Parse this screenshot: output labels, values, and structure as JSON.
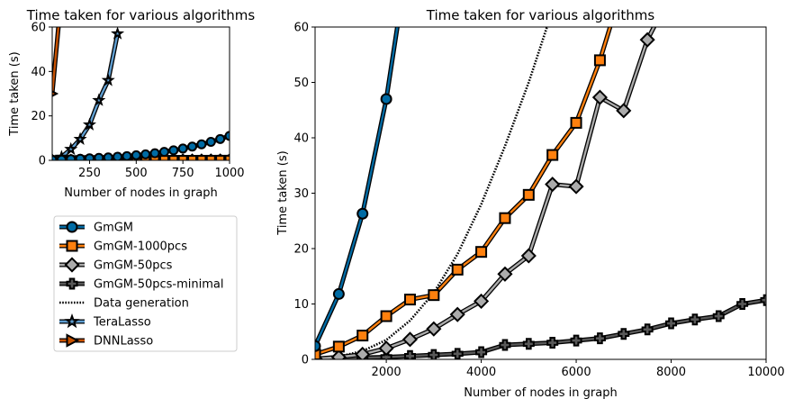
{
  "colors": {
    "GmGM": "#006BA4",
    "GmGM-1000pcs": "#FF800E",
    "GmGM-50pcs": "#ABABAB",
    "GmGM-50pcs-minimal": "#595959",
    "Data generation": "#000000",
    "TeraLasso": "#5F9ED1",
    "DNNLasso": "#C85200"
  },
  "chart_data": [
    {
      "type": "line",
      "title": "Time taken for various algorithms",
      "xlabel": "Number of nodes in graph",
      "ylabel": "Time taken (s)",
      "xlim": [
        50,
        1000
      ],
      "ylim": [
        0,
        60
      ],
      "xticks": [
        250,
        500,
        750,
        1000
      ],
      "yticks": [
        0,
        20,
        40,
        60
      ],
      "xtick_labels": [
        "250",
        "500",
        "750",
        "1000"
      ],
      "ytick_labels": [
        "0",
        "20",
        "40",
        "60"
      ],
      "series": [
        {
          "name": "GmGM",
          "marker": "circle",
          "x": [
            50,
            100,
            150,
            200,
            250,
            300,
            350,
            400,
            450,
            500,
            550,
            600,
            650,
            700,
            750,
            800,
            850,
            900,
            950,
            1000
          ],
          "y": [
            0.2,
            0.3,
            0.5,
            0.7,
            0.9,
            1.1,
            1.3,
            1.6,
            1.9,
            2.3,
            2.7,
            3.2,
            3.8,
            4.5,
            5.3,
            6.2,
            7.2,
            8.3,
            9.6,
            11.0
          ]
        },
        {
          "name": "GmGM-1000pcs",
          "marker": "square",
          "x": [
            50,
            100,
            150,
            200,
            250,
            300,
            350,
            400,
            450,
            500,
            550,
            600,
            650,
            700,
            750,
            800,
            850,
            900,
            950,
            1000
          ],
          "y": [
            0.05,
            0.06,
            0.07,
            0.08,
            0.09,
            0.1,
            0.11,
            0.12,
            0.13,
            0.14,
            0.15,
            0.16,
            0.17,
            0.18,
            0.19,
            0.2,
            0.21,
            0.22,
            0.23,
            0.24
          ]
        },
        {
          "name": "GmGM-50pcs",
          "marker": "diamond",
          "x": [
            50,
            100,
            150,
            200,
            250,
            300,
            350,
            400,
            450,
            500,
            550,
            600,
            650,
            700,
            750,
            800,
            850,
            900,
            950,
            1000
          ],
          "y": [
            0.04,
            0.05,
            0.06,
            0.07,
            0.08,
            0.09,
            0.1,
            0.11,
            0.12,
            0.13,
            0.14,
            0.15,
            0.16,
            0.17,
            0.18,
            0.19,
            0.2,
            0.21,
            0.22,
            0.23
          ]
        },
        {
          "name": "GmGM-50pcs-minimal",
          "marker": "plus",
          "x": [
            50,
            100,
            150,
            200,
            250,
            300,
            350,
            400,
            450,
            500,
            550,
            600,
            650,
            700,
            750,
            800,
            850,
            900,
            950,
            1000
          ],
          "y": [
            0.05,
            0.06,
            0.07,
            0.08,
            0.09,
            0.1,
            0.11,
            0.12,
            0.13,
            0.14,
            0.15,
            0.16,
            0.17,
            0.18,
            0.19,
            0.2,
            0.21,
            0.22,
            0.23,
            0.24
          ]
        },
        {
          "name": "Data generation",
          "marker": "none",
          "x": [
            50,
            200,
            400,
            600,
            800,
            1000
          ],
          "y": [
            0.01,
            0.02,
            0.05,
            0.1,
            0.16,
            0.25
          ]
        },
        {
          "name": "TeraLasso",
          "marker": "star",
          "x": [
            50,
            100,
            150,
            200,
            250,
            300,
            350,
            400
          ],
          "y": [
            0.3,
            1.5,
            5.0,
            9.5,
            16.0,
            27.0,
            36.0,
            57.0
          ]
        },
        {
          "name": "DNNLasso",
          "marker": "triangle-right",
          "x": [
            50,
            100
          ],
          "y": [
            30,
            75
          ]
        }
      ]
    },
    {
      "type": "line",
      "title": "Time taken for various algorithms",
      "xlabel": "Number of nodes in graph",
      "ylabel": "Time taken (s)",
      "xlim": [
        500,
        10000
      ],
      "ylim": [
        0,
        60
      ],
      "xticks": [
        2000,
        4000,
        6000,
        8000,
        10000
      ],
      "yticks": [
        0,
        10,
        20,
        30,
        40,
        50,
        60
      ],
      "xtick_labels": [
        "2000",
        "4000",
        "6000",
        "8000",
        "10000"
      ],
      "ytick_labels": [
        "0",
        "10",
        "20",
        "30",
        "40",
        "50",
        "60"
      ],
      "series": [
        {
          "name": "GmGM",
          "marker": "circle",
          "x": [
            500,
            1000,
            1500,
            2000,
            2500
          ],
          "y": [
            2.4,
            11.8,
            26.3,
            47.0,
            75.0
          ]
        },
        {
          "name": "GmGM-1000pcs",
          "marker": "square",
          "x": [
            500,
            1000,
            1500,
            2000,
            2500,
            3000,
            3500,
            4000,
            4500,
            5000,
            5500,
            6000,
            6500,
            7000
          ],
          "y": [
            0.9,
            2.3,
            4.3,
            7.8,
            10.8,
            11.6,
            16.2,
            19.4,
            25.5,
            29.7,
            36.9,
            42.7,
            54.0,
            68.0
          ]
        },
        {
          "name": "GmGM-50pcs",
          "marker": "diamond",
          "x": [
            500,
            1000,
            1500,
            2000,
            2500,
            3000,
            3500,
            4000,
            4500,
            5000,
            5500,
            6000,
            6500,
            7000,
            7500,
            8000
          ],
          "y": [
            0.1,
            0.4,
            0.9,
            2.0,
            3.6,
            5.5,
            8.1,
            10.5,
            15.4,
            18.7,
            31.6,
            31.2,
            47.3,
            44.9,
            57.7,
            66.0
          ]
        },
        {
          "name": "GmGM-50pcs-minimal",
          "marker": "plus",
          "x": [
            500,
            1000,
            1500,
            2000,
            2500,
            3000,
            3500,
            4000,
            4500,
            5000,
            5500,
            6000,
            6500,
            7000,
            7500,
            8000,
            8500,
            9000,
            9500,
            10000
          ],
          "y": [
            0.1,
            0.2,
            0.3,
            0.4,
            0.6,
            0.8,
            1.0,
            1.3,
            2.6,
            2.8,
            3.0,
            3.4,
            3.8,
            4.6,
            5.4,
            6.5,
            7.2,
            7.8,
            10.0,
            10.7
          ]
        },
        {
          "name": "Data generation",
          "marker": "none",
          "x": [
            500,
            1000,
            1500,
            2000,
            2500,
            3000,
            3500,
            4000,
            4500,
            5000,
            5500
          ],
          "y": [
            0.1,
            0.5,
            1.5,
            3.5,
            7.0,
            12.0,
            19.0,
            28.0,
            38.5,
            50.0,
            63.0
          ]
        },
        {
          "name": "TeraLasso",
          "marker": "star",
          "x": [],
          "y": []
        },
        {
          "name": "DNNLasso",
          "marker": "triangle-right",
          "x": [],
          "y": []
        }
      ]
    }
  ],
  "legend": {
    "placement": "below-left",
    "entries": [
      "GmGM",
      "GmGM-1000pcs",
      "GmGM-50pcs",
      "GmGM-50pcs-minimal",
      "Data generation",
      "TeraLasso",
      "DNNLasso"
    ]
  }
}
